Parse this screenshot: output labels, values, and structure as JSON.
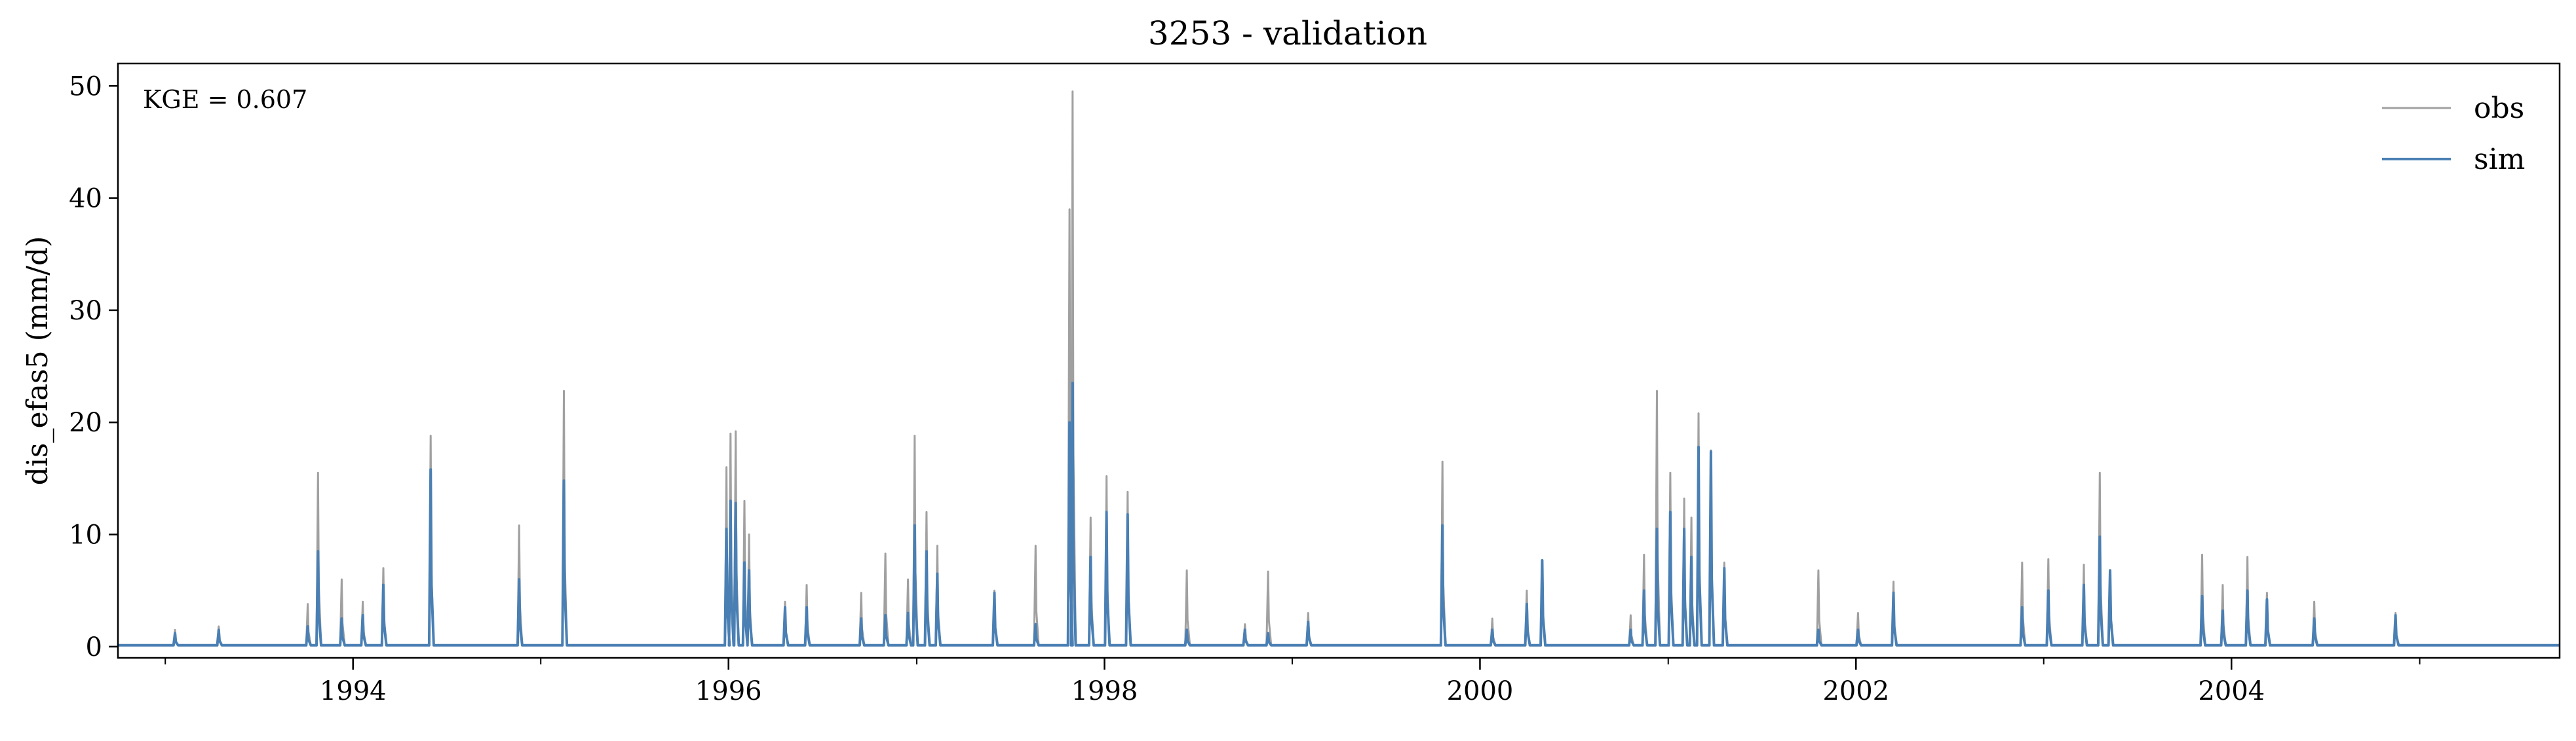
{
  "chart_data": {
    "type": "line",
    "title": "3253 - validation",
    "xlabel": "",
    "ylabel": "dis_efas5 (mm/d)",
    "annotation": "KGE = 0.607",
    "xlim": [
      "1992-10-01",
      "2005-09-30"
    ],
    "ylim": [
      -1,
      52
    ],
    "yticks": [
      0,
      10,
      20,
      30,
      40,
      50
    ],
    "xticks": [
      "1994",
      "1996",
      "1998",
      "2000",
      "2002",
      "2004"
    ],
    "grid": false,
    "legend_position": "top-right",
    "baseline": 0.12,
    "series": [
      {
        "name": "obs",
        "color": "#a0a0a0",
        "peaks": [
          [
            "1993-01-20",
            1.5
          ],
          [
            "1993-04-15",
            1.8
          ],
          [
            "1993-10-05",
            3.8
          ],
          [
            "1993-10-25",
            15.5
          ],
          [
            "1993-12-10",
            6.0
          ],
          [
            "1994-01-20",
            4.0
          ],
          [
            "1994-03-01",
            7.0
          ],
          [
            "1994-06-01",
            18.8
          ],
          [
            "1994-11-20",
            10.8
          ],
          [
            "1995-02-15",
            22.8
          ],
          [
            "1995-12-28",
            16.0
          ],
          [
            "1996-01-05",
            19.0
          ],
          [
            "1996-01-15",
            19.2
          ],
          [
            "1996-02-01",
            13.0
          ],
          [
            "1996-02-10",
            10.0
          ],
          [
            "1996-04-20",
            4.0
          ],
          [
            "1996-06-01",
            5.5
          ],
          [
            "1996-09-15",
            4.8
          ],
          [
            "1996-11-01",
            8.3
          ],
          [
            "1996-12-15",
            6.0
          ],
          [
            "1996-12-28",
            18.8
          ],
          [
            "1997-01-20",
            12.0
          ],
          [
            "1997-02-10",
            9.0
          ],
          [
            "1997-06-01",
            5.0
          ],
          [
            "1997-08-20",
            9.0
          ],
          [
            "1997-10-25",
            39.0
          ],
          [
            "1997-10-31",
            49.5
          ],
          [
            "1997-12-05",
            11.5
          ],
          [
            "1998-01-05",
            15.2
          ],
          [
            "1998-02-15",
            13.8
          ],
          [
            "1998-06-10",
            6.8
          ],
          [
            "1998-10-01",
            2.0
          ],
          [
            "1998-11-15",
            6.7
          ],
          [
            "1999-02-01",
            3.0
          ],
          [
            "1999-10-20",
            16.5
          ],
          [
            "2000-01-25",
            2.5
          ],
          [
            "2000-04-01",
            5.0
          ],
          [
            "2000-05-01",
            7.5
          ],
          [
            "2000-10-20",
            2.8
          ],
          [
            "2000-11-15",
            8.2
          ],
          [
            "2000-12-10",
            22.8
          ],
          [
            "2001-01-05",
            15.5
          ],
          [
            "2001-02-01",
            13.2
          ],
          [
            "2001-02-15",
            11.5
          ],
          [
            "2001-03-01",
            20.8
          ],
          [
            "2001-03-25",
            17.5
          ],
          [
            "2001-04-20",
            7.5
          ],
          [
            "2001-10-20",
            6.8
          ],
          [
            "2002-01-05",
            3.0
          ],
          [
            "2002-03-15",
            5.8
          ],
          [
            "2002-11-20",
            7.5
          ],
          [
            "2003-01-10",
            7.8
          ],
          [
            "2003-03-20",
            7.3
          ],
          [
            "2003-04-20",
            15.5
          ],
          [
            "2003-05-10",
            6.8
          ],
          [
            "2003-11-05",
            8.2
          ],
          [
            "2003-12-15",
            5.5
          ],
          [
            "2004-02-01",
            8.0
          ],
          [
            "2004-03-10",
            4.8
          ],
          [
            "2004-06-10",
            4.0
          ],
          [
            "2004-11-15",
            3.0
          ]
        ]
      },
      {
        "name": "sim",
        "color": "#4a7fb3",
        "peaks": [
          [
            "1993-01-20",
            1.2
          ],
          [
            "1993-04-15",
            1.5
          ],
          [
            "1993-10-05",
            1.8
          ],
          [
            "1993-10-25",
            8.5
          ],
          [
            "1993-12-10",
            2.5
          ],
          [
            "1994-01-20",
            2.8
          ],
          [
            "1994-03-01",
            5.5
          ],
          [
            "1994-06-01",
            15.8
          ],
          [
            "1994-11-20",
            6.0
          ],
          [
            "1995-02-15",
            14.8
          ],
          [
            "1995-12-28",
            10.5
          ],
          [
            "1996-01-05",
            13.0
          ],
          [
            "1996-01-15",
            12.8
          ],
          [
            "1996-02-01",
            7.5
          ],
          [
            "1996-02-10",
            6.8
          ],
          [
            "1996-04-20",
            3.5
          ],
          [
            "1996-06-01",
            3.5
          ],
          [
            "1996-09-15",
            2.5
          ],
          [
            "1996-11-01",
            2.8
          ],
          [
            "1996-12-15",
            3.0
          ],
          [
            "1996-12-28",
            10.8
          ],
          [
            "1997-01-20",
            8.5
          ],
          [
            "1997-02-10",
            6.5
          ],
          [
            "1997-06-01",
            4.8
          ],
          [
            "1997-08-20",
            2.0
          ],
          [
            "1997-10-25",
            20.0
          ],
          [
            "1997-10-31",
            23.5
          ],
          [
            "1997-12-05",
            8.0
          ],
          [
            "1998-01-05",
            12.0
          ],
          [
            "1998-02-15",
            11.8
          ],
          [
            "1998-06-10",
            1.5
          ],
          [
            "1998-10-01",
            1.5
          ],
          [
            "1998-11-15",
            1.2
          ],
          [
            "1999-02-01",
            2.2
          ],
          [
            "1999-10-20",
            10.8
          ],
          [
            "2000-01-25",
            1.5
          ],
          [
            "2000-04-01",
            3.8
          ],
          [
            "2000-05-01",
            7.7
          ],
          [
            "2000-10-20",
            1.5
          ],
          [
            "2000-11-15",
            5.0
          ],
          [
            "2000-12-10",
            10.5
          ],
          [
            "2001-01-05",
            12.0
          ],
          [
            "2001-02-01",
            10.5
          ],
          [
            "2001-02-15",
            8.0
          ],
          [
            "2001-03-01",
            17.8
          ],
          [
            "2001-03-25",
            17.4
          ],
          [
            "2001-04-20",
            7.0
          ],
          [
            "2001-10-20",
            1.5
          ],
          [
            "2002-01-05",
            1.5
          ],
          [
            "2002-03-15",
            4.8
          ],
          [
            "2002-11-20",
            3.5
          ],
          [
            "2003-01-10",
            5.0
          ],
          [
            "2003-03-20",
            5.5
          ],
          [
            "2003-04-20",
            9.8
          ],
          [
            "2003-05-10",
            6.8
          ],
          [
            "2003-11-05",
            4.5
          ],
          [
            "2003-12-15",
            3.2
          ],
          [
            "2004-02-01",
            5.0
          ],
          [
            "2004-03-10",
            4.2
          ],
          [
            "2004-06-10",
            2.5
          ],
          [
            "2004-11-15",
            2.8
          ]
        ]
      }
    ]
  }
}
